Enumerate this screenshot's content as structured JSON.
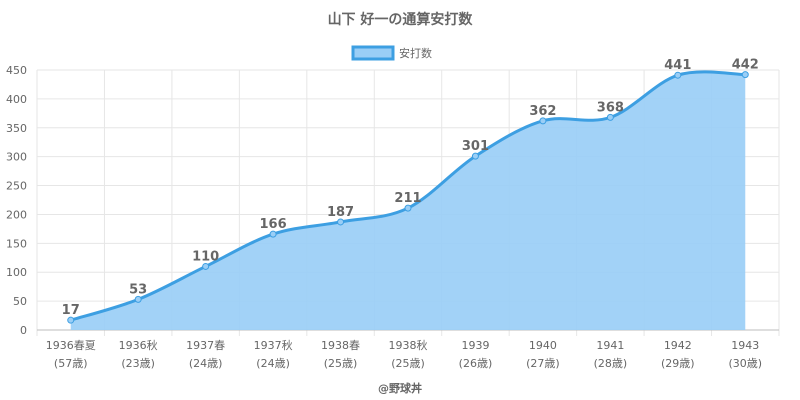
{
  "chart_data": {
    "type": "area",
    "title": "山下 好一の通算安打数",
    "legend": {
      "label": "安打数",
      "placement": "top-center"
    },
    "categories": [
      [
        "1936春夏",
        "(57歳)"
      ],
      [
        "1936秋",
        "(23歳)"
      ],
      [
        "1937春",
        "(24歳)"
      ],
      [
        "1937秋",
        "(24歳)"
      ],
      [
        "1938春",
        "(25歳)"
      ],
      [
        "1938秋",
        "(25歳)"
      ],
      [
        "1939",
        "(26歳)"
      ],
      [
        "1940",
        "(27歳)"
      ],
      [
        "1941",
        "(28歳)"
      ],
      [
        "1942",
        "(29歳)"
      ],
      [
        "1943",
        "(30歳)"
      ]
    ],
    "series": [
      {
        "name": "安打数",
        "values": [
          17,
          53,
          110,
          166,
          187,
          211,
          301,
          362,
          368,
          441,
          442
        ]
      }
    ],
    "ylim": [
      0,
      450
    ],
    "yticks": [
      0,
      50,
      100,
      150,
      200,
      250,
      300,
      350,
      400,
      450
    ],
    "grid": true,
    "colors": {
      "line": "#3d9fe2",
      "fill": "#9acef6",
      "grid": "#e6e6e6",
      "text": "#666666"
    }
  },
  "footer": "@野球丼"
}
